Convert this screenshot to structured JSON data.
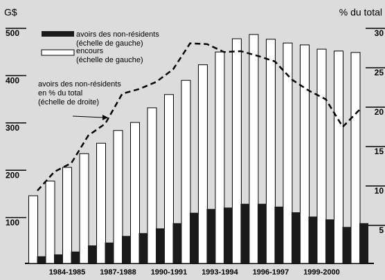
{
  "chart_data": {
    "type": "bar",
    "y_label": "G$",
    "y2_label": "% du total",
    "categories": [
      null,
      null,
      "1984-1985",
      null,
      null,
      "1987-1988",
      null,
      null,
      "1990-1991",
      null,
      null,
      "1993-1994",
      null,
      null,
      "1996-1997",
      null,
      null,
      "1999-2000",
      null,
      null
    ],
    "series": [
      {
        "name": [
          "encours",
          "(échelle de gauche)"
        ],
        "color": "#ffffff",
        "values": [
          146,
          177,
          206,
          235,
          257,
          284,
          301,
          332,
          360,
          390,
          423,
          450,
          478,
          487,
          477,
          469,
          465,
          456,
          452,
          449
        ]
      },
      {
        "name": [
          "avoirs des non-résidents",
          "(échelle de gauche)"
        ],
        "color": "#1a1a1a",
        "values": [
          18,
          22,
          28,
          41,
          47,
          61,
          67,
          77,
          88,
          110,
          118,
          121,
          129,
          129,
          123,
          111,
          102,
          96,
          80,
          88
        ]
      },
      {
        "name": [
          "avoirs des non-résidents",
          "en % du total",
          "(échelle de droite)"
        ],
        "color": "#000000",
        "type": "line",
        "axis": "y2",
        "values": [
          9.4,
          11.8,
          12.9,
          16.4,
          17.9,
          21.7,
          22.3,
          23.2,
          24.8,
          28.1,
          28.0,
          27.0,
          27.1,
          26.5,
          25.8,
          23.5,
          22.1,
          21.0,
          17.5,
          19.7
        ]
      }
    ],
    "ylim": [
      0,
      500
    ],
    "yticks": [
      100,
      200,
      300,
      400,
      500
    ],
    "y2lim": [
      0,
      30
    ],
    "y2ticks": [
      5,
      10,
      15,
      20,
      25,
      30
    ]
  }
}
